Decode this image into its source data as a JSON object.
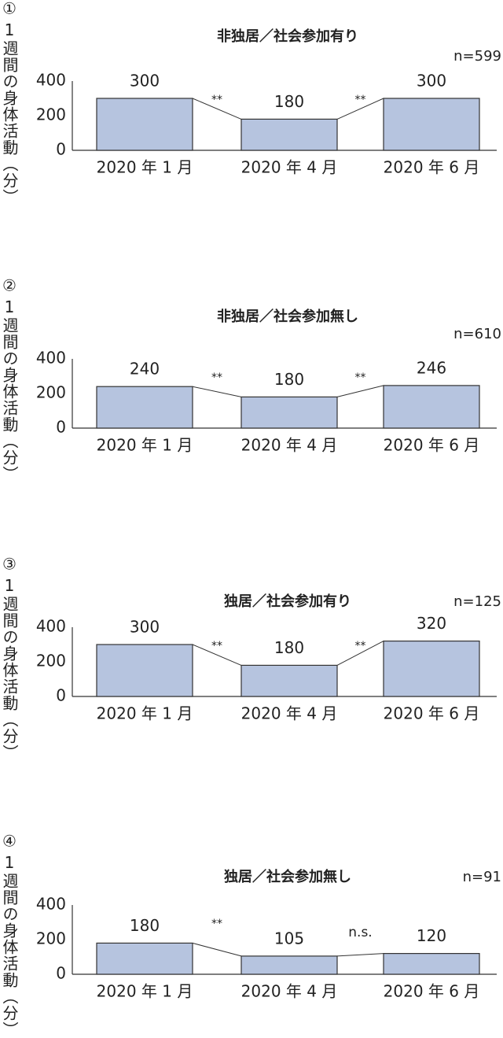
{
  "chart_data": [
    {
      "type": "bar",
      "panel_label": "①",
      "ylabel": "1週間の身体活動（分）",
      "title": "非独居／社会参加有り",
      "n_label": "n=599",
      "categories": [
        "2020 年 1 月",
        "2020 年 4 月",
        "2020 年 6 月"
      ],
      "values": [
        300,
        180,
        300
      ],
      "significance": [
        "**",
        "**"
      ],
      "color": "#b6c4df",
      "ylim": [
        0,
        400
      ],
      "yticks": [
        0,
        200,
        400
      ]
    },
    {
      "type": "bar",
      "panel_label": "②",
      "ylabel": "1週間の身体活動（分）",
      "title": "非独居／社会参加無し",
      "n_label": "n=610",
      "categories": [
        "2020 年 1 月",
        "2020 年 4 月",
        "2020 年 6 月"
      ],
      "values": [
        240,
        180,
        246
      ],
      "significance": [
        "**",
        "**"
      ],
      "color": "#b6c4df",
      "ylim": [
        0,
        400
      ],
      "yticks": [
        0,
        200,
        400
      ]
    },
    {
      "type": "bar",
      "panel_label": "③",
      "ylabel": "1週間の身体活動（分）",
      "title": "独居／社会参加有り",
      "n_label": "n=125",
      "categories": [
        "2020 年 1 月",
        "2020 年 4 月",
        "2020 年 6 月"
      ],
      "values": [
        300,
        180,
        320
      ],
      "significance": [
        "**",
        "**"
      ],
      "color": "#b6c4df",
      "ylim": [
        0,
        400
      ],
      "yticks": [
        0,
        200,
        400
      ]
    },
    {
      "type": "bar",
      "panel_label": "④",
      "ylabel": "1週間の身体活動（分）",
      "title": "独居／社会参加無し",
      "n_label": "n=91",
      "categories": [
        "2020 年 1 月",
        "2020 年 4 月",
        "2020 年 6 月"
      ],
      "values": [
        180,
        105,
        120
      ],
      "significance": [
        "**",
        "n.s."
      ],
      "color": "#b6c4df",
      "ylim": [
        0,
        400
      ],
      "yticks": [
        0,
        200,
        400
      ]
    }
  ]
}
